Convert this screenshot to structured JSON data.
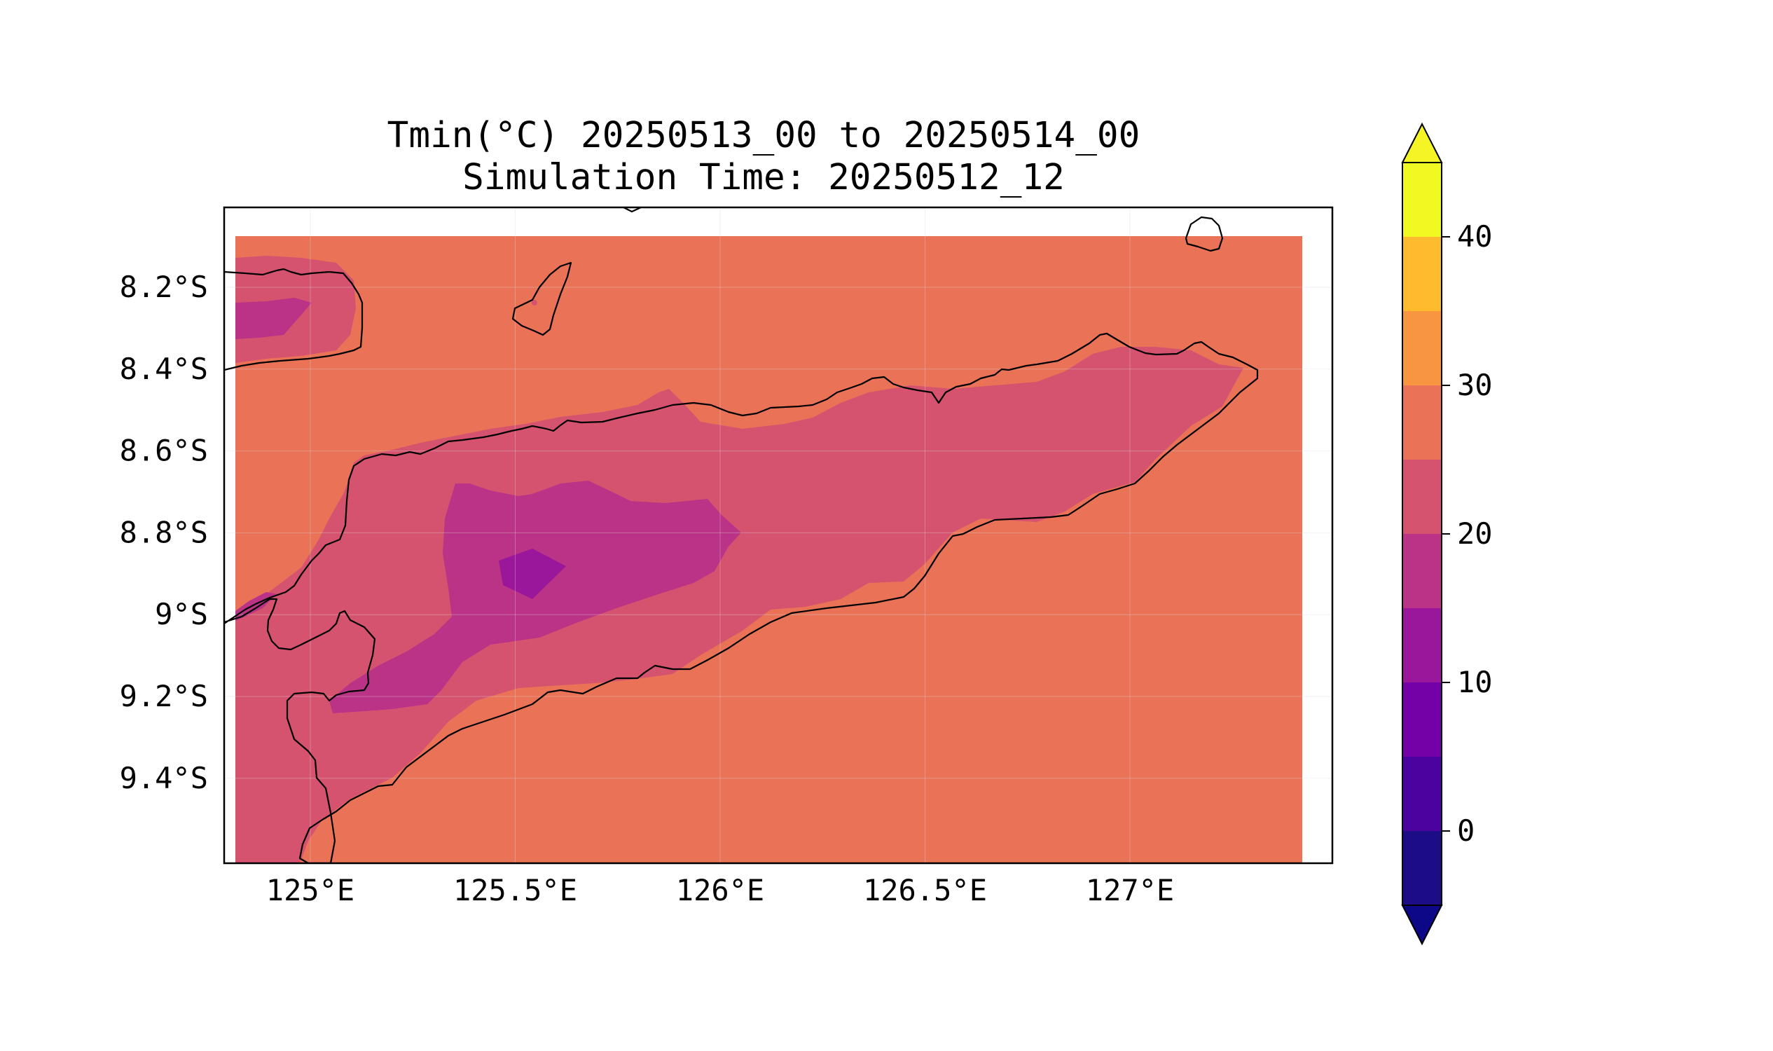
{
  "title_line1": "Tmin(°C) 20250513_00 to 20250514_00",
  "title_line2": "Simulation Time: 20250512_12",
  "x_ticks": [
    {
      "value": 125.0,
      "label": "125°E"
    },
    {
      "value": 125.5,
      "label": "125.5°E"
    },
    {
      "value": 126.0,
      "label": "126°E"
    },
    {
      "value": 126.5,
      "label": "126.5°E"
    },
    {
      "value": 127.0,
      "label": "127°E"
    }
  ],
  "y_ticks": [
    {
      "value": -8.2,
      "label": "8.2°S"
    },
    {
      "value": -8.4,
      "label": "8.4°S"
    },
    {
      "value": -8.6,
      "label": "8.6°S"
    },
    {
      "value": -8.8,
      "label": "8.8°S"
    },
    {
      "value": -9.0,
      "label": "9°S"
    },
    {
      "value": -9.2,
      "label": "9.2°S"
    },
    {
      "value": -9.4,
      "label": "9.4°S"
    }
  ],
  "colorbar": {
    "levels": [
      -5,
      0,
      5,
      10,
      15,
      20,
      25,
      30,
      35,
      40,
      45
    ],
    "colors": [
      "#1c0c86",
      "#4b029f",
      "#7401a8",
      "#9a179b",
      "#bb3387",
      "#d5536f",
      "#e97257",
      "#f89540",
      "#fdbb2d",
      "#f0f921"
    ],
    "under_color": "#0d0887",
    "over_color": "#f5f425",
    "ticks": [
      {
        "value": 0,
        "label": "0"
      },
      {
        "value": 10,
        "label": "10"
      },
      {
        "value": 20,
        "label": "20"
      },
      {
        "value": 30,
        "label": "30"
      },
      {
        "value": 40,
        "label": "40"
      }
    ]
  },
  "field_colors": {
    "band_25_30": "#e97257",
    "band_20_25": "#d5536f",
    "band_15_20": "#bb3387",
    "band_10_15": "#9a179b"
  },
  "coastline_color": "#000000",
  "grid": true
}
